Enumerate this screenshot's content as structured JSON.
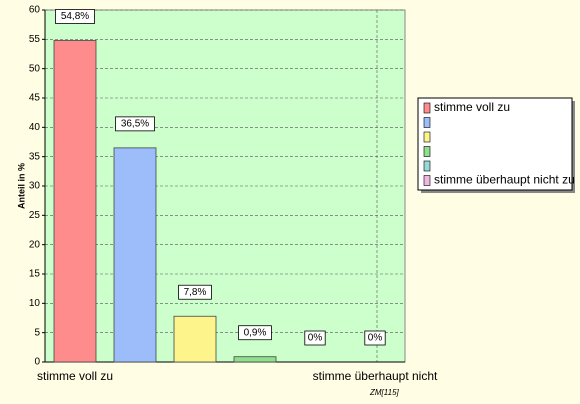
{
  "chart_data": {
    "type": "bar",
    "y_label": "Anteil in %",
    "categories": [
      "stimme voll zu",
      null,
      null,
      null,
      null,
      "stimme überhaupt nicht"
    ],
    "values": [
      54.8,
      36.5,
      7.8,
      0.9,
      0,
      0
    ],
    "value_labels": [
      "54,8%",
      "36,5%",
      "7,8%",
      "0,9%",
      "0%",
      "0%"
    ],
    "colors": [
      "#ff8c8c",
      "#9cbcfa",
      "#fdf58c",
      "#8ee08e",
      "#9ad8d8",
      "#f0b8e0"
    ],
    "legend": [
      "stimme voll zu",
      null,
      null,
      null,
      null,
      "stimme überhaupt nicht zu"
    ],
    "ylim": [
      0,
      60
    ],
    "yticks": [
      0,
      5,
      10,
      15,
      20,
      25,
      30,
      35,
      40,
      45,
      50,
      55,
      60
    ],
    "grid": true,
    "note": "ZM[115]"
  }
}
